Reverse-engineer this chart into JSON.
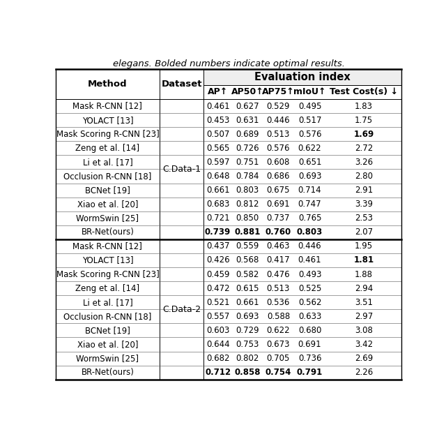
{
  "subtitle": "elegans. Bolded numbers indicate optimal results.",
  "col_headers_sub": [
    "Method",
    "Dataset",
    "AP↑",
    "AP50↑",
    "AP75↑",
    "mIoU↑",
    "Test Cost(s) ↓"
  ],
  "datasets": [
    "C.Data-1",
    "C.Data-2"
  ],
  "methods": [
    "Mask R-CNN [12]",
    "YOLACT [13]",
    "Mask Scoring R-CNN [23]",
    "Zeng et al. [14]",
    "Li et al. [17]",
    "Occlusion R-CNN [18]",
    "BCNet [19]",
    "Xiao et al. [20]",
    "WormSwin [25]",
    "BR-Net(ours)"
  ],
  "data_cdata1": [
    [
      0.461,
      0.627,
      0.529,
      0.495,
      1.83
    ],
    [
      0.453,
      0.631,
      0.446,
      0.517,
      1.75
    ],
    [
      0.507,
      0.689,
      0.513,
      0.576,
      1.69
    ],
    [
      0.565,
      0.726,
      0.576,
      0.622,
      2.72
    ],
    [
      0.597,
      0.751,
      0.608,
      0.651,
      3.26
    ],
    [
      0.648,
      0.784,
      0.686,
      0.693,
      2.8
    ],
    [
      0.661,
      0.803,
      0.675,
      0.714,
      2.91
    ],
    [
      0.683,
      0.812,
      0.691,
      0.747,
      3.39
    ],
    [
      0.721,
      0.85,
      0.737,
      0.765,
      2.53
    ],
    [
      0.739,
      0.881,
      0.76,
      0.803,
      2.07
    ]
  ],
  "data_cdata2": [
    [
      0.437,
      0.559,
      0.463,
      0.446,
      1.95
    ],
    [
      0.426,
      0.568,
      0.417,
      0.461,
      1.81
    ],
    [
      0.459,
      0.582,
      0.476,
      0.493,
      1.88
    ],
    [
      0.472,
      0.615,
      0.513,
      0.525,
      2.94
    ],
    [
      0.521,
      0.661,
      0.536,
      0.562,
      3.51
    ],
    [
      0.557,
      0.693,
      0.588,
      0.633,
      2.97
    ],
    [
      0.603,
      0.729,
      0.622,
      0.68,
      3.08
    ],
    [
      0.644,
      0.753,
      0.673,
      0.691,
      3.42
    ],
    [
      0.682,
      0.802,
      0.705,
      0.736,
      2.69
    ],
    [
      0.712,
      0.858,
      0.754,
      0.791,
      2.26
    ]
  ],
  "bold_cdata1": [
    [
      false,
      false,
      false,
      false,
      false
    ],
    [
      false,
      false,
      false,
      false,
      false
    ],
    [
      false,
      false,
      false,
      false,
      true
    ],
    [
      false,
      false,
      false,
      false,
      false
    ],
    [
      false,
      false,
      false,
      false,
      false
    ],
    [
      false,
      false,
      false,
      false,
      false
    ],
    [
      false,
      false,
      false,
      false,
      false
    ],
    [
      false,
      false,
      false,
      false,
      false
    ],
    [
      false,
      false,
      false,
      false,
      false
    ],
    [
      true,
      true,
      true,
      true,
      false
    ]
  ],
  "bold_cdata2": [
    [
      false,
      false,
      false,
      false,
      false
    ],
    [
      false,
      false,
      false,
      false,
      true
    ],
    [
      false,
      false,
      false,
      false,
      false
    ],
    [
      false,
      false,
      false,
      false,
      false
    ],
    [
      false,
      false,
      false,
      false,
      false
    ],
    [
      false,
      false,
      false,
      false,
      false
    ],
    [
      false,
      false,
      false,
      false,
      false
    ],
    [
      false,
      false,
      false,
      false,
      false
    ],
    [
      false,
      false,
      false,
      false,
      false
    ],
    [
      true,
      true,
      true,
      true,
      false
    ]
  ],
  "bg_color": "#ffffff",
  "figsize": [
    6.4,
    6.19
  ],
  "dpi": 100
}
